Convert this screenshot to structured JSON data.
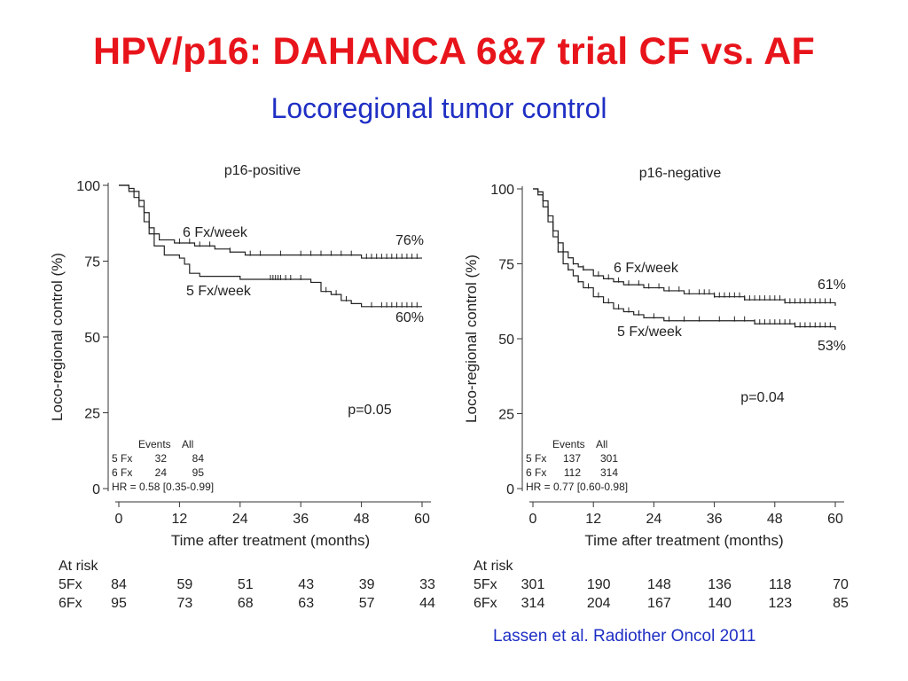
{
  "title": "HPV/p16:  DAHANCA 6&7 trial CF vs. AF",
  "subtitle": "Locoregional tumor control",
  "citation": "Lassen et al. Radiother Oncol 2011",
  "chart_data": [
    {
      "type": "line",
      "title": "p16-positive",
      "xlabel": "Time after treatment (months)",
      "ylabel": "Loco-regional control (%)",
      "xlim": [
        0,
        60
      ],
      "ylim": [
        0,
        100
      ],
      "xticks": [
        0,
        12,
        24,
        36,
        48,
        60
      ],
      "yticks": [
        0,
        25,
        50,
        75,
        100
      ],
      "series": [
        {
          "name": "6 Fx/week",
          "label": "6 Fx/week",
          "end_label": "76%",
          "points": [
            [
              0,
              100
            ],
            [
              2,
              99
            ],
            [
              3,
              98
            ],
            [
              4,
              95
            ],
            [
              5,
              91
            ],
            [
              6,
              86
            ],
            [
              7,
              84
            ],
            [
              8,
              82
            ],
            [
              11,
              81
            ],
            [
              15,
              80
            ],
            [
              19,
              79
            ],
            [
              22,
              78
            ],
            [
              25,
              77
            ],
            [
              48,
              76
            ],
            [
              60,
              76
            ]
          ],
          "censors": [
            12,
            14,
            16,
            18,
            22,
            26,
            28,
            32,
            36,
            38,
            40,
            42,
            44,
            46,
            49,
            50,
            51,
            52,
            53,
            54,
            55,
            56,
            57,
            58,
            59
          ]
        },
        {
          "name": "5 Fx/week",
          "label": "5 Fx/week",
          "end_label": "60%",
          "points": [
            [
              0,
              100
            ],
            [
              2,
              98
            ],
            [
              3,
              96
            ],
            [
              4,
              93
            ],
            [
              5,
              88
            ],
            [
              6,
              84
            ],
            [
              7,
              80
            ],
            [
              9,
              77
            ],
            [
              12,
              76
            ],
            [
              13,
              74
            ],
            [
              14,
              71
            ],
            [
              16,
              70
            ],
            [
              21,
              70
            ],
            [
              24,
              69
            ],
            [
              38,
              68
            ],
            [
              40,
              65
            ],
            [
              42,
              64
            ],
            [
              44,
              62
            ],
            [
              46,
              61
            ],
            [
              48,
              60
            ],
            [
              60,
              60
            ]
          ],
          "censors": [
            30,
            30.5,
            31,
            31.5,
            32,
            33,
            34,
            36,
            41,
            43,
            45,
            50,
            52,
            53,
            54,
            55,
            56,
            57,
            58,
            59
          ]
        }
      ],
      "pvalue": "p=0.05",
      "events_table": {
        "headers": [
          "Events",
          "All"
        ],
        "rows": [
          {
            "label": "5 Fx",
            "events": "32",
            "all": "84"
          },
          {
            "label": "6 Fx",
            "events": "24",
            "all": "95"
          }
        ],
        "hr": "HR = 0.58 [0.35-0.99]"
      },
      "at_risk": {
        "heading": "At risk",
        "rows": [
          {
            "label": "5Fx",
            "values": [
              "84",
              "59",
              "51",
              "43",
              "39",
              "33"
            ]
          },
          {
            "label": "6Fx",
            "values": [
              "95",
              "73",
              "68",
              "63",
              "57",
              "44"
            ]
          }
        ]
      }
    },
    {
      "type": "line",
      "title": "p16-negative",
      "xlabel": "Time after treatment (months)",
      "ylabel": "Loco-regional control (%)",
      "xlim": [
        0,
        60
      ],
      "ylim": [
        0,
        100
      ],
      "xticks": [
        0,
        12,
        24,
        36,
        48,
        60
      ],
      "yticks": [
        0,
        25,
        50,
        75,
        100
      ],
      "series": [
        {
          "name": "6 Fx/week",
          "label": "6 Fx/week",
          "end_label": "61%",
          "points": [
            [
              0,
              100
            ],
            [
              1,
              99
            ],
            [
              2,
              96
            ],
            [
              3,
              91
            ],
            [
              4,
              86
            ],
            [
              5,
              82
            ],
            [
              6,
              79
            ],
            [
              7,
              77
            ],
            [
              8,
              75
            ],
            [
              9,
              74
            ],
            [
              10,
              73
            ],
            [
              12,
              71
            ],
            [
              14,
              70
            ],
            [
              16,
              69
            ],
            [
              18,
              68
            ],
            [
              22,
              67
            ],
            [
              26,
              66
            ],
            [
              30,
              65
            ],
            [
              36,
              64
            ],
            [
              42,
              63
            ],
            [
              50,
              62
            ],
            [
              60,
              61
            ]
          ],
          "censors": [
            6,
            8,
            10,
            13,
            15,
            17,
            19,
            21,
            23,
            25,
            27,
            29,
            31,
            33,
            34,
            35,
            36,
            37,
            38,
            39,
            40,
            41,
            42,
            43,
            44,
            45,
            46,
            47,
            48,
            49,
            50,
            51,
            52,
            53,
            54,
            55,
            56,
            57,
            58,
            59
          ]
        },
        {
          "name": "5 Fx/week",
          "label": "5 Fx/week",
          "end_label": "53%",
          "points": [
            [
              0,
              100
            ],
            [
              1,
              98
            ],
            [
              2,
              94
            ],
            [
              3,
              89
            ],
            [
              4,
              84
            ],
            [
              5,
              79
            ],
            [
              6,
              75
            ],
            [
              7,
              73
            ],
            [
              8,
              71
            ],
            [
              9,
              69
            ],
            [
              10,
              67
            ],
            [
              12,
              64
            ],
            [
              14,
              62
            ],
            [
              16,
              60
            ],
            [
              18,
              59
            ],
            [
              20,
              58
            ],
            [
              22,
              57
            ],
            [
              26,
              56
            ],
            [
              36,
              56
            ],
            [
              44,
              55
            ],
            [
              52,
              54
            ],
            [
              60,
              53
            ]
          ],
          "censors": [
            5,
            7,
            9,
            11,
            13,
            15,
            17,
            19,
            21,
            24,
            27,
            30,
            33,
            37,
            40,
            42,
            44,
            45,
            46,
            47,
            48,
            49,
            50,
            51,
            52,
            53,
            54,
            55,
            56,
            57,
            58,
            59
          ]
        }
      ],
      "pvalue": "p=0.04",
      "events_table": {
        "headers": [
          "Events",
          "All"
        ],
        "rows": [
          {
            "label": "5 Fx",
            "events": "137",
            "all": "301"
          },
          {
            "label": "6 Fx",
            "events": "112",
            "all": "314"
          }
        ],
        "hr": "HR = 0.77 [0.60-0.98]"
      },
      "at_risk": {
        "heading": "At risk",
        "rows": [
          {
            "label": "5Fx",
            "values": [
              "301",
              "190",
              "148",
              "136",
              "118",
              "70"
            ]
          },
          {
            "label": "6Fx",
            "values": [
              "314",
              "204",
              "167",
              "140",
              "123",
              "85"
            ]
          }
        ]
      }
    }
  ]
}
